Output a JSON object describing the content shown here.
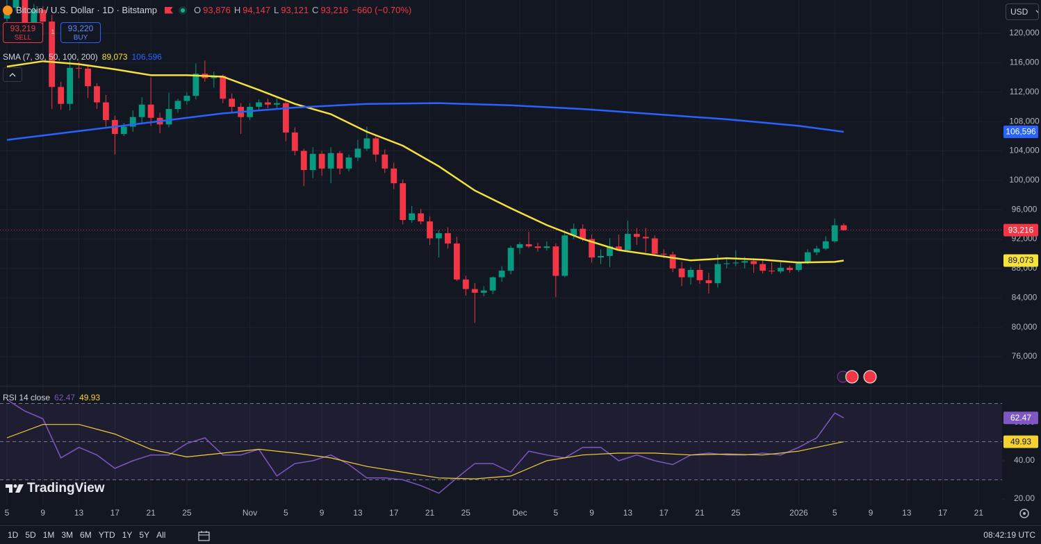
{
  "ui": {
    "header": {
      "symbol": "Bitcoin / U.S. Dollar · 1D · Bitstamp",
      "ohlc": [
        {
          "key": "O",
          "value": "93,876"
        },
        {
          "key": "H",
          "value": "94,147"
        },
        {
          "key": "L",
          "value": "93,121"
        },
        {
          "key": "C",
          "value": "93,216"
        }
      ],
      "change": "−660 (−0.70%)"
    },
    "sell": {
      "price": "93,219",
      "label": "SELL"
    },
    "spread": "1",
    "buy": {
      "price": "93,220",
      "label": "BUY"
    },
    "currency": "USD",
    "logo": "TradingView",
    "ranges": [
      "1D",
      "5D",
      "1M",
      "3M",
      "6M",
      "YTD",
      "1Y",
      "5Y",
      "All"
    ],
    "clock": "08:42:19 UTC"
  },
  "chart_data": [
    {
      "type": "candlestick",
      "indicator": "SMA (7, 30, 50, 100, 200)",
      "x": [
        0,
        1,
        2,
        3,
        4,
        5,
        6,
        7,
        8,
        9,
        10,
        11,
        12,
        13,
        14,
        15,
        16,
        17,
        18,
        19,
        20,
        21,
        22,
        23,
        24,
        25,
        26,
        27,
        28,
        29,
        30,
        31,
        32,
        33,
        34,
        35,
        36,
        37,
        38,
        39,
        40,
        41,
        42,
        43,
        44,
        45,
        46,
        47,
        48,
        49,
        50,
        51,
        52,
        53,
        54,
        55,
        56,
        57,
        58,
        59,
        60,
        61,
        62,
        63,
        64,
        65,
        66,
        67,
        68,
        69,
        70,
        71,
        72,
        73,
        74,
        75,
        76,
        77,
        78,
        79,
        80,
        81,
        82,
        83,
        84,
        85,
        86,
        87,
        88,
        89,
        90,
        91,
        92,
        93
      ],
      "ohlc": [
        [
          122000,
          125100,
          121600,
          123500
        ],
        [
          123500,
          126200,
          123000,
          124700
        ],
        [
          124700,
          125100,
          120600,
          121400
        ],
        [
          121400,
          124000,
          121000,
          123200
        ],
        [
          123200,
          123700,
          119700,
          121600
        ],
        [
          121600,
          122500,
          109700,
          112700
        ],
        [
          112700,
          113400,
          109600,
          110400
        ],
        [
          110400,
          116400,
          109500,
          115300
        ],
        [
          115300,
          116100,
          113900,
          115200
        ],
        [
          115200,
          115600,
          111200,
          112800
        ],
        [
          112800,
          113200,
          109700,
          110600
        ],
        [
          110600,
          111600,
          107300,
          108200
        ],
        [
          108200,
          108800,
          103500,
          106300
        ],
        [
          106300,
          107800,
          106000,
          107300
        ],
        [
          107300,
          109500,
          106600,
          108600
        ],
        [
          108600,
          111300,
          107600,
          110300
        ],
        [
          110300,
          114000,
          107400,
          108500
        ],
        [
          108500,
          109200,
          106400,
          107600
        ],
        [
          107600,
          111900,
          107200,
          109700
        ],
        [
          109700,
          111100,
          109200,
          110800
        ],
        [
          110800,
          112000,
          110300,
          111500
        ],
        [
          111500,
          115900,
          111000,
          114500
        ],
        [
          114500,
          116300,
          113400,
          113900
        ],
        [
          113900,
          114800,
          112600,
          114200
        ],
        [
          114200,
          114400,
          110500,
          111100
        ],
        [
          111100,
          111800,
          109300,
          110000
        ],
        [
          110000,
          110500,
          106300,
          108600
        ],
        [
          108600,
          110500,
          108200,
          110000
        ],
        [
          110000,
          111000,
          109600,
          110600
        ],
        [
          110600,
          111100,
          109800,
          110300
        ],
        [
          110300,
          111200,
          109700,
          110500
        ],
        [
          110500,
          110800,
          105300,
          106500
        ],
        [
          106500,
          107200,
          103400,
          104000
        ],
        [
          104000,
          104300,
          99200,
          101400
        ],
        [
          101400,
          104500,
          100300,
          103600
        ],
        [
          103600,
          104000,
          100600,
          101600
        ],
        [
          101600,
          104500,
          99600,
          103700
        ],
        [
          103700,
          104000,
          100800,
          101600
        ],
        [
          101600,
          103500,
          101200,
          103100
        ],
        [
          103100,
          105500,
          102600,
          104300
        ],
        [
          104300,
          107300,
          104000,
          105700
        ],
        [
          105700,
          106000,
          102500,
          103500
        ],
        [
          103500,
          104200,
          101000,
          101600
        ],
        [
          101600,
          102400,
          98800,
          99600
        ],
        [
          99600,
          100100,
          94000,
          94600
        ],
        [
          94600,
          96500,
          94200,
          95500
        ],
        [
          95500,
          96100,
          94000,
          94400
        ],
        [
          94400,
          95100,
          91200,
          92100
        ],
        [
          92100,
          93200,
          89500,
          92800
        ],
        [
          92800,
          93600,
          90700,
          91400
        ],
        [
          91400,
          92300,
          86300,
          86500
        ],
        [
          86500,
          87000,
          84300,
          85200
        ],
        [
          85200,
          86000,
          80600,
          84700
        ],
        [
          84700,
          85600,
          84200,
          85000
        ],
        [
          85000,
          86900,
          84500,
          86800
        ],
        [
          86800,
          88300,
          86200,
          87700
        ],
        [
          87700,
          91100,
          87200,
          90800
        ],
        [
          90800,
          91600,
          90000,
          91300
        ],
        [
          91300,
          93000,
          90800,
          91000
        ],
        [
          91000,
          91500,
          90300,
          90800
        ],
        [
          90800,
          91700,
          90400,
          91000
        ],
        [
          91000,
          91400,
          84100,
          87000
        ],
        [
          87000,
          93000,
          86800,
          92500
        ],
        [
          92500,
          94100,
          92000,
          93400
        ],
        [
          93400,
          94000,
          91700,
          92000
        ],
        [
          92000,
          92600,
          88800,
          89500
        ],
        [
          89500,
          90600,
          88600,
          89700
        ],
        [
          89700,
          92100,
          88200,
          91000
        ],
        [
          91000,
          92600,
          90400,
          90500
        ],
        [
          90500,
          94500,
          90200,
          92700
        ],
        [
          92700,
          93500,
          91200,
          92300
        ],
        [
          92300,
          93500,
          90200,
          92100
        ],
        [
          92100,
          92500,
          89800,
          90000
        ],
        [
          90000,
          90600,
          89400,
          89900
        ],
        [
          89900,
          90300,
          87500,
          88000
        ],
        [
          88000,
          88900,
          85600,
          86800
        ],
        [
          86800,
          88200,
          85800,
          87800
        ],
        [
          87800,
          88600,
          85900,
          86400
        ],
        [
          86400,
          87400,
          84600,
          86000
        ],
        [
          86000,
          89900,
          85400,
          88600
        ],
        [
          88600,
          89300,
          88000,
          88700
        ],
        [
          88700,
          90500,
          88300,
          88800
        ],
        [
          88800,
          89600,
          88000,
          89000
        ],
        [
          89000,
          89400,
          87400,
          88600
        ],
        [
          88600,
          89100,
          87300,
          87700
        ],
        [
          87700,
          88800,
          87200,
          87600
        ],
        [
          87600,
          88900,
          87300,
          88100
        ],
        [
          88100,
          88400,
          87400,
          87800
        ],
        [
          87800,
          89000,
          87500,
          88800
        ],
        [
          88800,
          90600,
          88600,
          90200
        ],
        [
          90200,
          91100,
          89800,
          90700
        ],
        [
          90700,
          92400,
          90500,
          91700
        ],
        [
          91700,
          94800,
          91500,
          93876
        ],
        [
          93876,
          94147,
          93121,
          93216
        ]
      ],
      "up_color": "#089981",
      "down_color": "#f23645",
      "last_label": "93,216",
      "series": [
        {
          "color": "#f7e13b",
          "last_label": "89,073",
          "x": [
            0,
            4,
            8,
            12,
            16,
            20,
            24,
            28,
            32,
            36,
            40,
            44,
            48,
            52,
            56,
            60,
            64,
            68,
            72,
            76,
            80,
            84,
            88,
            92,
            93
          ],
          "values": [
            115470,
            116200,
            115800,
            115100,
            114300,
            114300,
            114100,
            112300,
            110400,
            109000,
            106600,
            104700,
            101900,
            98600,
            96200,
            93900,
            92000,
            90500,
            89800,
            89100,
            89400,
            89200,
            88800,
            88900,
            89073
          ]
        },
        {
          "color": "#2962ff",
          "last_label": "106,596",
          "x": [
            0,
            8,
            16,
            24,
            32,
            40,
            48,
            56,
            64,
            72,
            80,
            88,
            93
          ],
          "values": [
            105500,
            106700,
            107900,
            109100,
            109900,
            110400,
            110500,
            110200,
            109700,
            109000,
            108300,
            107400,
            106596
          ]
        }
      ],
      "xlim": [
        -0.77,
        110.6
      ],
      "ylim": [
        72035,
        124532
      ],
      "yticks": [
        {
          "value": 76000,
          "label": "76,000"
        },
        {
          "value": 80000,
          "label": "80,000"
        },
        {
          "value": 84000,
          "label": "84,000"
        },
        {
          "value": 88000,
          "label": "88,000"
        },
        {
          "value": 92000,
          "label": "92,000"
        },
        {
          "value": 96000,
          "label": "96,000"
        },
        {
          "value": 100000,
          "label": "100,000"
        },
        {
          "value": 104000,
          "label": "104,000"
        },
        {
          "value": 108000,
          "label": "108,000"
        },
        {
          "value": 112000,
          "label": "112,000"
        },
        {
          "value": 116000,
          "label": "116,000"
        },
        {
          "value": 120000,
          "label": "120,000"
        }
      ],
      "xticks": [
        {
          "value": 0,
          "label": "5"
        },
        {
          "value": 4,
          "label": "9"
        },
        {
          "value": 8,
          "label": "13"
        },
        {
          "value": 12,
          "label": "17"
        },
        {
          "value": 16,
          "label": "21"
        },
        {
          "value": 20,
          "label": "25"
        },
        {
          "value": 27,
          "label": "Nov"
        },
        {
          "value": 31,
          "label": "5"
        },
        {
          "value": 35,
          "label": "9"
        },
        {
          "value": 39,
          "label": "13"
        },
        {
          "value": 43,
          "label": "17"
        },
        {
          "value": 47,
          "label": "21"
        },
        {
          "value": 51,
          "label": "25"
        },
        {
          "value": 57,
          "label": "Dec"
        },
        {
          "value": 61,
          "label": "5"
        },
        {
          "value": 65,
          "label": "9"
        },
        {
          "value": 69,
          "label": "13"
        },
        {
          "value": 73,
          "label": "17"
        },
        {
          "value": 77,
          "label": "21"
        },
        {
          "value": 81,
          "label": "25"
        },
        {
          "value": 88,
          "label": "2026"
        },
        {
          "value": 92,
          "label": "5"
        },
        {
          "value": 96,
          "label": "9"
        },
        {
          "value": 100,
          "label": "13"
        },
        {
          "value": 104,
          "label": "17"
        },
        {
          "value": 108,
          "label": "21"
        }
      ],
      "grid": true
    },
    {
      "type": "line",
      "title": "RSI 14 close",
      "series": [
        {
          "color": "#7e57c2",
          "last_label": "62.47",
          "x": [
            0,
            2,
            4,
            6,
            8,
            10,
            12,
            14,
            16,
            18,
            20,
            22,
            24,
            26,
            28,
            30,
            32,
            34,
            36,
            38,
            40,
            42,
            44,
            46,
            48,
            50,
            52,
            54,
            56,
            58,
            60,
            62,
            64,
            66,
            68,
            70,
            72,
            74,
            76,
            78,
            80,
            82,
            84,
            86,
            88,
            90,
            92,
            93
          ],
          "values": [
            72,
            66,
            62,
            41.5,
            47,
            43,
            36,
            40,
            43,
            43,
            49,
            52,
            43,
            43,
            46,
            32,
            38.5,
            40,
            43,
            38,
            31,
            31,
            30,
            27,
            23,
            31,
            38.5,
            38.5,
            34,
            45,
            43,
            41.5,
            47,
            47,
            40,
            43,
            40,
            38,
            43,
            44,
            43,
            43,
            44,
            43,
            47,
            52,
            65,
            62.47
          ]
        },
        {
          "color": "#f5d131",
          "last_label": "49.93",
          "x": [
            0,
            4,
            8,
            12,
            16,
            20,
            24,
            28,
            32,
            36,
            40,
            44,
            48,
            52,
            56,
            60,
            64,
            68,
            72,
            76,
            80,
            84,
            88,
            92,
            93
          ],
          "values": [
            52,
            59,
            59,
            54,
            46,
            42,
            44,
            46,
            44,
            41.5,
            37,
            34,
            31,
            30.5,
            32,
            40,
            43,
            44,
            44,
            43,
            43.5,
            43,
            45,
            49,
            49.93
          ]
        }
      ],
      "levels": [
        70,
        50,
        30
      ],
      "band_color": "#7e57c2",
      "xlim": [
        -0.77,
        110.6
      ],
      "ylim": [
        16.73,
        78.9
      ],
      "yticks": [
        {
          "value": 20,
          "label": "20.00"
        },
        {
          "value": 40,
          "label": "40.00"
        },
        {
          "value": 60,
          "label": "60.00"
        }
      ]
    }
  ]
}
